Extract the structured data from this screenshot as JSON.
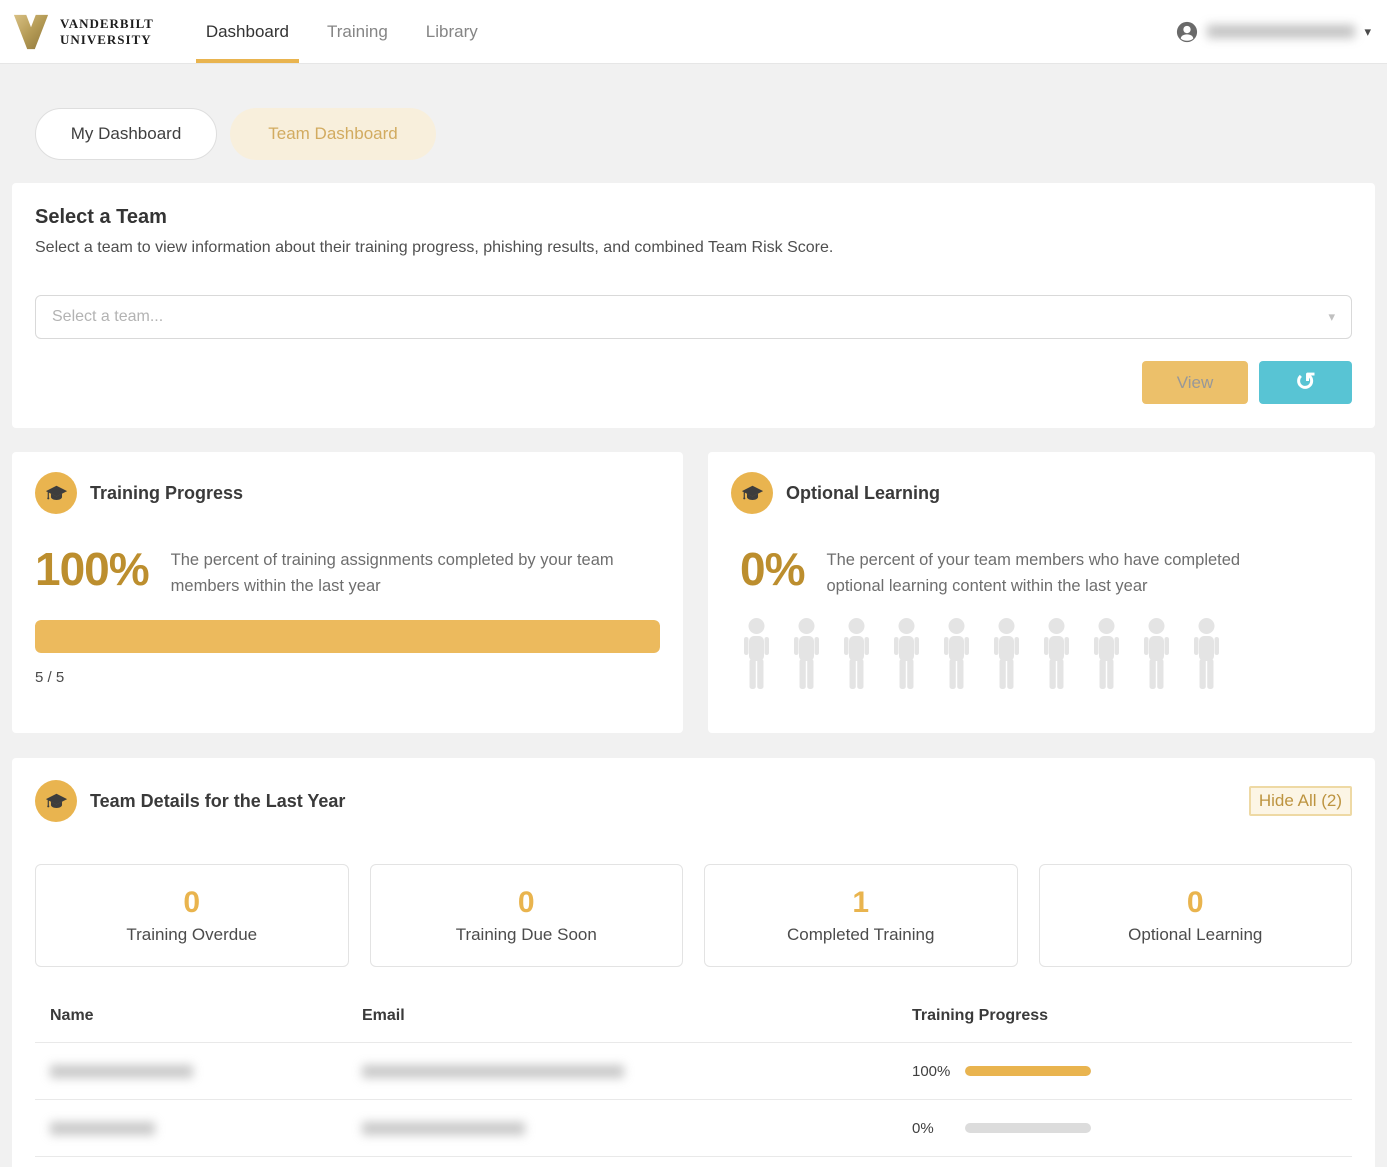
{
  "nav": {
    "logo": {
      "icon": "vanderbilt-v-logo",
      "line1": "VANDERBILT",
      "line2": "UNIVERSITY"
    },
    "items": [
      {
        "label": "Dashboard",
        "active": true
      },
      {
        "label": "Training",
        "active": false
      },
      {
        "label": "Library",
        "active": false
      }
    ],
    "user": {
      "icon": "user-avatar-icon",
      "name_redacted": true,
      "caret": "▾"
    }
  },
  "dashboard_toggle": {
    "my_dashboard": "My Dashboard",
    "team_dashboard": "Team Dashboard",
    "selected": "Team Dashboard"
  },
  "select_team": {
    "title": "Select a Team",
    "subtitle": "Select a team to view information about their training progress, phishing results, and combined Team Risk Score.",
    "dropdown_placeholder": "Select a team...",
    "dropdown_caret": "▾",
    "view_button": "View",
    "reset_icon": "↺"
  },
  "training_progress_card": {
    "icon": "graduation-cap-icon",
    "title": "Training Progress",
    "percent": "100%",
    "progress_value": 100,
    "description": "The percent of training assignments completed by your team members within the last year",
    "ratio": "5 / 5"
  },
  "optional_learning_card": {
    "icon": "graduation-cap-icon",
    "title": "Optional Learning",
    "percent": "0%",
    "description": "The percent of your team members who have completed optional learning content within the last year",
    "people_total": 10,
    "people_filled": 0
  },
  "team_details": {
    "icon": "graduation-cap-icon",
    "title": "Team Details for the Last Year",
    "hide_all_button": "Hide All (2)",
    "stats": [
      {
        "value": "0",
        "label": "Training Overdue"
      },
      {
        "value": "0",
        "label": "Training Due Soon"
      },
      {
        "value": "1",
        "label": "Completed Training"
      },
      {
        "value": "0",
        "label": "Optional Learning"
      }
    ],
    "table": {
      "columns": [
        "Name",
        "Email",
        "Training Progress"
      ],
      "rows": [
        {
          "name_redacted": true,
          "email_redacted": true,
          "progress_label": "100%",
          "progress": 100
        },
        {
          "name_redacted": true,
          "email_redacted": true,
          "progress_label": "0%",
          "progress": 0
        }
      ]
    }
  },
  "colors": {
    "accent_gold": "#e9b44f",
    "gold_dark_text": "#bc8e2e",
    "progress_bar_gold": "#ecba5d",
    "teal_button": "#58c4d4",
    "pill_cream": "#f8efdc",
    "pill_text": "#d2ab60"
  }
}
